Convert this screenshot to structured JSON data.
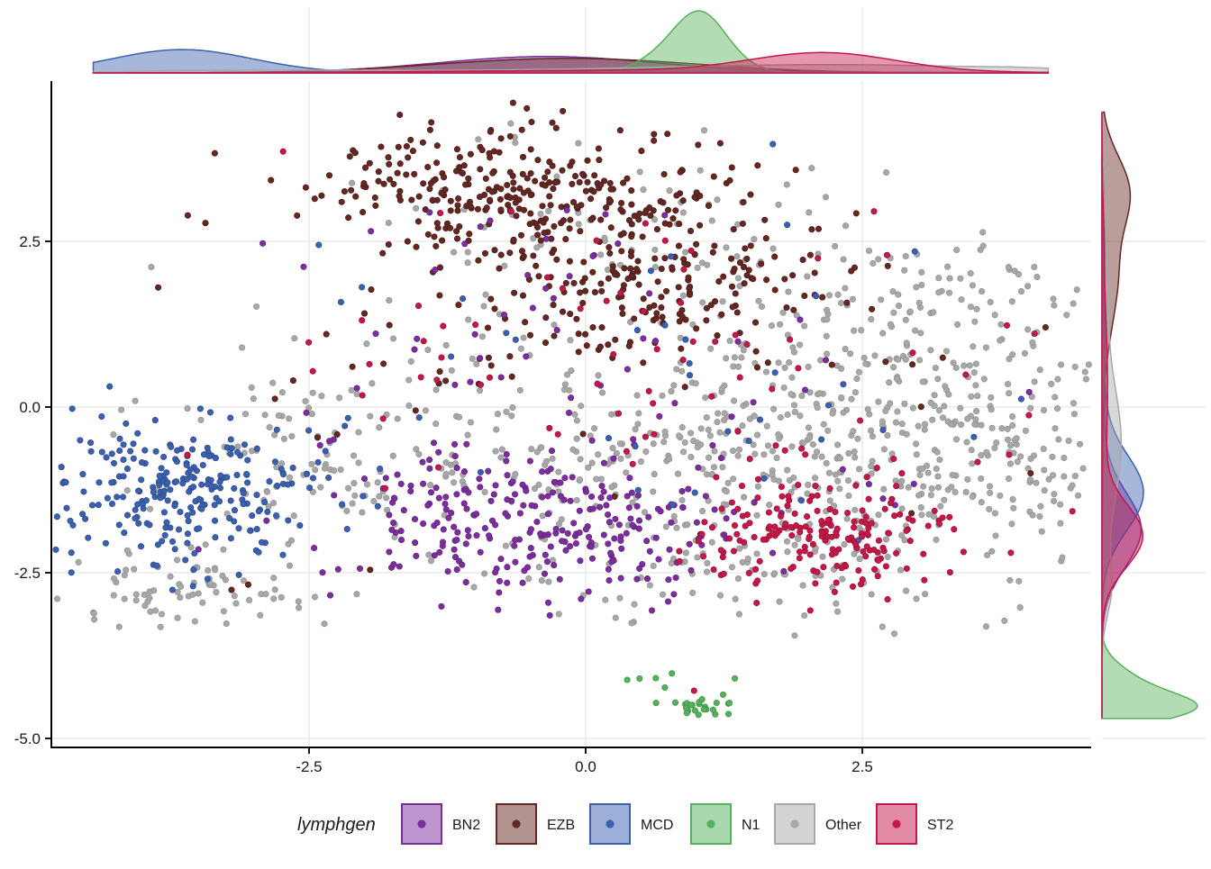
{
  "figure": {
    "kind": "scatter-with-marginal-densities",
    "background": "#ffffff",
    "grid_color": "#e6e6e6",
    "axis_color": "#000000"
  },
  "chart_data": {
    "type": "scatter",
    "title": "",
    "xlabel": "",
    "ylabel": "",
    "x_axis": {
      "range": [
        -4.83,
        4.57
      ],
      "ticks": [
        -2.5,
        0.0,
        2.5
      ],
      "tick_labels": [
        "-2.5",
        "0.0",
        "2.5"
      ]
    },
    "y_axis": {
      "range": [
        -5.14,
        4.92
      ],
      "ticks": [
        2.5,
        0.0,
        -2.5,
        -5.0
      ],
      "tick_labels": [
        "2.5",
        "0.0",
        "-2.5",
        "-5.0"
      ]
    },
    "grid": "major-only",
    "seed": 20240613,
    "point_radius": 3.2,
    "series": [
      {
        "name": "Other",
        "color": "#a8a8a8",
        "stroke": "#8f8f8f",
        "clusters": [
          [
            2.55,
            -0.35,
            1.05,
            1.05,
            340
          ],
          [
            0.5,
            -0.7,
            1.4,
            0.85,
            240
          ],
          [
            -3.6,
            -2.8,
            0.6,
            0.3,
            75
          ],
          [
            -2.3,
            -0.6,
            0.75,
            0.8,
            95
          ],
          [
            0.4,
            2.3,
            1.3,
            0.8,
            85
          ],
          [
            4.05,
            -0.5,
            0.4,
            0.9,
            65
          ],
          [
            1.6,
            -2.5,
            0.9,
            0.45,
            80
          ],
          [
            3.3,
            1.6,
            0.7,
            0.5,
            60
          ]
        ],
        "extras": []
      },
      {
        "name": "EZB",
        "color": "#642722",
        "stroke": "#491a16",
        "clusters": [
          [
            -0.6,
            3.25,
            0.95,
            0.5,
            300
          ],
          [
            0.55,
            2.0,
            0.85,
            0.55,
            170
          ],
          [
            -0.1,
            1.1,
            1.5,
            0.5,
            45
          ],
          [
            0.3,
            0.0,
            2.2,
            1.1,
            25
          ]
        ],
        "extras": [
          [
            -3.2,
            -2.76
          ],
          [
            -3.05,
            -2.68
          ]
        ]
      },
      {
        "name": "BN2",
        "color": "#7d2e9e",
        "stroke": "#5e2178",
        "clusters": [
          [
            -0.35,
            -1.85,
            0.95,
            0.52,
            280
          ],
          [
            0.0,
            0.5,
            1.8,
            1.1,
            45
          ],
          [
            -0.6,
            2.9,
            1.0,
            0.5,
            12
          ]
        ],
        "extras": []
      },
      {
        "name": "MCD",
        "color": "#3b60af",
        "stroke": "#2a4887",
        "clusters": [
          [
            -3.65,
            -1.3,
            0.6,
            0.52,
            250
          ],
          [
            0.8,
            0.3,
            1.9,
            1.2,
            40
          ]
        ],
        "extras": []
      },
      {
        "name": "ST2",
        "color": "#c5184a",
        "stroke": "#97102f",
        "clusters": [
          [
            2.15,
            -1.95,
            0.62,
            0.42,
            190
          ],
          [
            0.6,
            0.3,
            2.0,
            1.2,
            70
          ],
          [
            0.2,
            2.6,
            1.0,
            0.4,
            6
          ]
        ],
        "extras": [
          [
            0.98,
            -4.28
          ]
        ]
      },
      {
        "name": "N1",
        "color": "#56b15c",
        "stroke": "#3d8f44",
        "clusters": [
          [
            1.03,
            -4.55,
            0.11,
            0.07,
            20
          ],
          [
            0.66,
            -4.2,
            0.1,
            0.12,
            4
          ],
          [
            1.22,
            -4.32,
            0.18,
            0.12,
            3
          ],
          [
            0.95,
            -4.0,
            0.3,
            0.12,
            3
          ]
        ],
        "extras": []
      }
    ],
    "marginals": {
      "bandwidth": 0.2,
      "fill_alpha": 0.45,
      "top_range": [
        -4.45,
        4.18
      ],
      "right_range": [
        -4.7,
        4.45
      ],
      "draw_order": [
        "BN2",
        "EZB",
        "MCD",
        "N1",
        "Other",
        "ST2"
      ]
    }
  },
  "legend": {
    "title": "lymphgen",
    "position": "bottom",
    "key_fill_alpha": 0.5,
    "items": [
      {
        "label": "BN2",
        "category": "BN2"
      },
      {
        "label": "EZB",
        "category": "EZB"
      },
      {
        "label": "MCD",
        "category": "MCD"
      },
      {
        "label": "N1",
        "category": "N1"
      },
      {
        "label": "Other",
        "category": "Other"
      },
      {
        "label": "ST2",
        "category": "ST2"
      }
    ]
  }
}
